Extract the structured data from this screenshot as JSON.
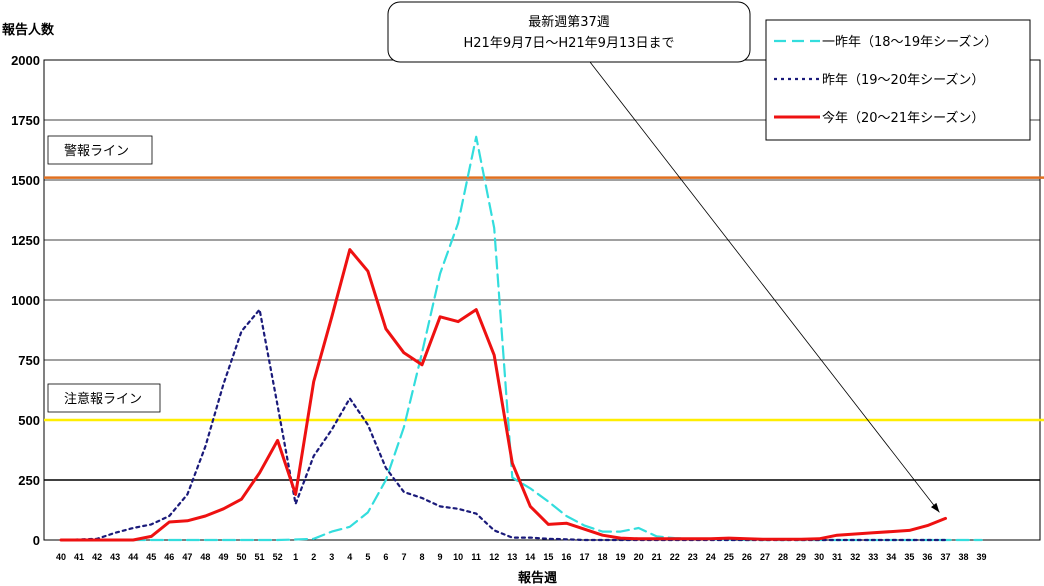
{
  "chart_data": {
    "type": "line",
    "ylabel": "報告人数",
    "xlabel": "報告週",
    "ylim": [
      0,
      2000
    ],
    "yticks": [
      "0",
      "250",
      "500",
      "750",
      "1000",
      "1250",
      "1500",
      "1750",
      "2000"
    ],
    "ytick_values": [
      0,
      250,
      500,
      750,
      1000,
      1250,
      1500,
      1750,
      2000
    ],
    "categories": [
      "40",
      "41",
      "42",
      "43",
      "44",
      "45",
      "46",
      "47",
      "48",
      "49",
      "50",
      "51",
      "52",
      "1",
      "2",
      "3",
      "4",
      "5",
      "6",
      "7",
      "8",
      "9",
      "10",
      "11",
      "12",
      "13",
      "14",
      "15",
      "16",
      "17",
      "18",
      "19",
      "20",
      "21",
      "22",
      "23",
      "24",
      "25",
      "26",
      "27",
      "28",
      "29",
      "30",
      "31",
      "32",
      "33",
      "34",
      "35",
      "36",
      "37",
      "38",
      "39"
    ],
    "grid": true,
    "legend_position": "top-right",
    "series": [
      {
        "name": "一昨年（18～19年シーズン）",
        "color": "#33dddd",
        "style": "dashed",
        "values": [
          0,
          0,
          0,
          0,
          0,
          0,
          0,
          0,
          0,
          0,
          0,
          0,
          0,
          2,
          5,
          35,
          55,
          115,
          250,
          470,
          780,
          1110,
          1320,
          1680,
          1300,
          260,
          215,
          160,
          100,
          60,
          35,
          35,
          50,
          15,
          8,
          5,
          3,
          2,
          0,
          0,
          0,
          0,
          0,
          0,
          0,
          0,
          0,
          0,
          0,
          0,
          0,
          0
        ]
      },
      {
        "name": "昨年（19～20年シーズン）",
        "color": "#1a1a7a",
        "style": "dotted",
        "values": [
          0,
          2,
          5,
          30,
          50,
          65,
          100,
          190,
          390,
          650,
          870,
          960,
          560,
          150,
          350,
          460,
          590,
          480,
          300,
          200,
          175,
          140,
          130,
          110,
          40,
          10,
          10,
          5,
          3,
          0,
          0,
          0,
          0,
          0,
          0,
          0,
          0,
          0,
          0,
          0,
          0,
          0,
          0,
          0,
          0,
          0,
          0,
          0,
          0,
          0,
          null,
          null
        ]
      },
      {
        "name": "今年（20～21年シーズン）",
        "color": "#ee1111",
        "style": "solid",
        "values": [
          0,
          0,
          0,
          0,
          0,
          15,
          75,
          80,
          100,
          130,
          170,
          280,
          415,
          190,
          660,
          930,
          1210,
          1120,
          880,
          780,
          730,
          930,
          910,
          960,
          770,
          320,
          140,
          65,
          70,
          45,
          20,
          8,
          5,
          5,
          5,
          5,
          5,
          8,
          5,
          3,
          3,
          3,
          5,
          20,
          25,
          30,
          35,
          40,
          60,
          90,
          null,
          null
        ]
      }
    ],
    "annotations": [
      {
        "text_line1": "最新週第37週",
        "text_line2": "H21年9月7日～H21年9月13日まで",
        "points_to": "37"
      }
    ],
    "reference_lines": [
      {
        "label": "警報ライン",
        "value": 1510,
        "color": "#e07020"
      },
      {
        "label": "注意報ライン",
        "value": 500,
        "color": "#ffee00"
      }
    ]
  }
}
